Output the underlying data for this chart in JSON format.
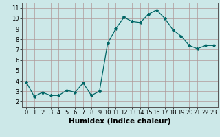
{
  "x": [
    0,
    1,
    2,
    3,
    4,
    5,
    6,
    7,
    8,
    9,
    10,
    11,
    12,
    13,
    14,
    15,
    16,
    17,
    18,
    19,
    20,
    21,
    22,
    23
  ],
  "y": [
    3.9,
    2.5,
    2.9,
    2.6,
    2.6,
    3.1,
    2.9,
    3.8,
    2.6,
    3.0,
    7.6,
    9.0,
    10.1,
    9.7,
    9.6,
    10.4,
    10.8,
    10.0,
    8.9,
    8.3,
    7.4,
    7.1,
    7.4,
    7.4
  ],
  "xlabel": "Humidex (Indice chaleur)",
  "xlim": [
    -0.5,
    23.5
  ],
  "ylim": [
    1.5,
    11.5
  ],
  "yticks": [
    2,
    3,
    4,
    5,
    6,
    7,
    8,
    9,
    10,
    11
  ],
  "xticks": [
    0,
    1,
    2,
    3,
    4,
    5,
    6,
    7,
    8,
    9,
    10,
    11,
    12,
    13,
    14,
    15,
    16,
    17,
    18,
    19,
    20,
    21,
    22,
    23
  ],
  "line_color": "#006666",
  "marker": "*",
  "bg_color": "#cce8e8",
  "grid_color": "#b09898",
  "tick_fontsize": 6,
  "xlabel_fontsize": 7.5
}
